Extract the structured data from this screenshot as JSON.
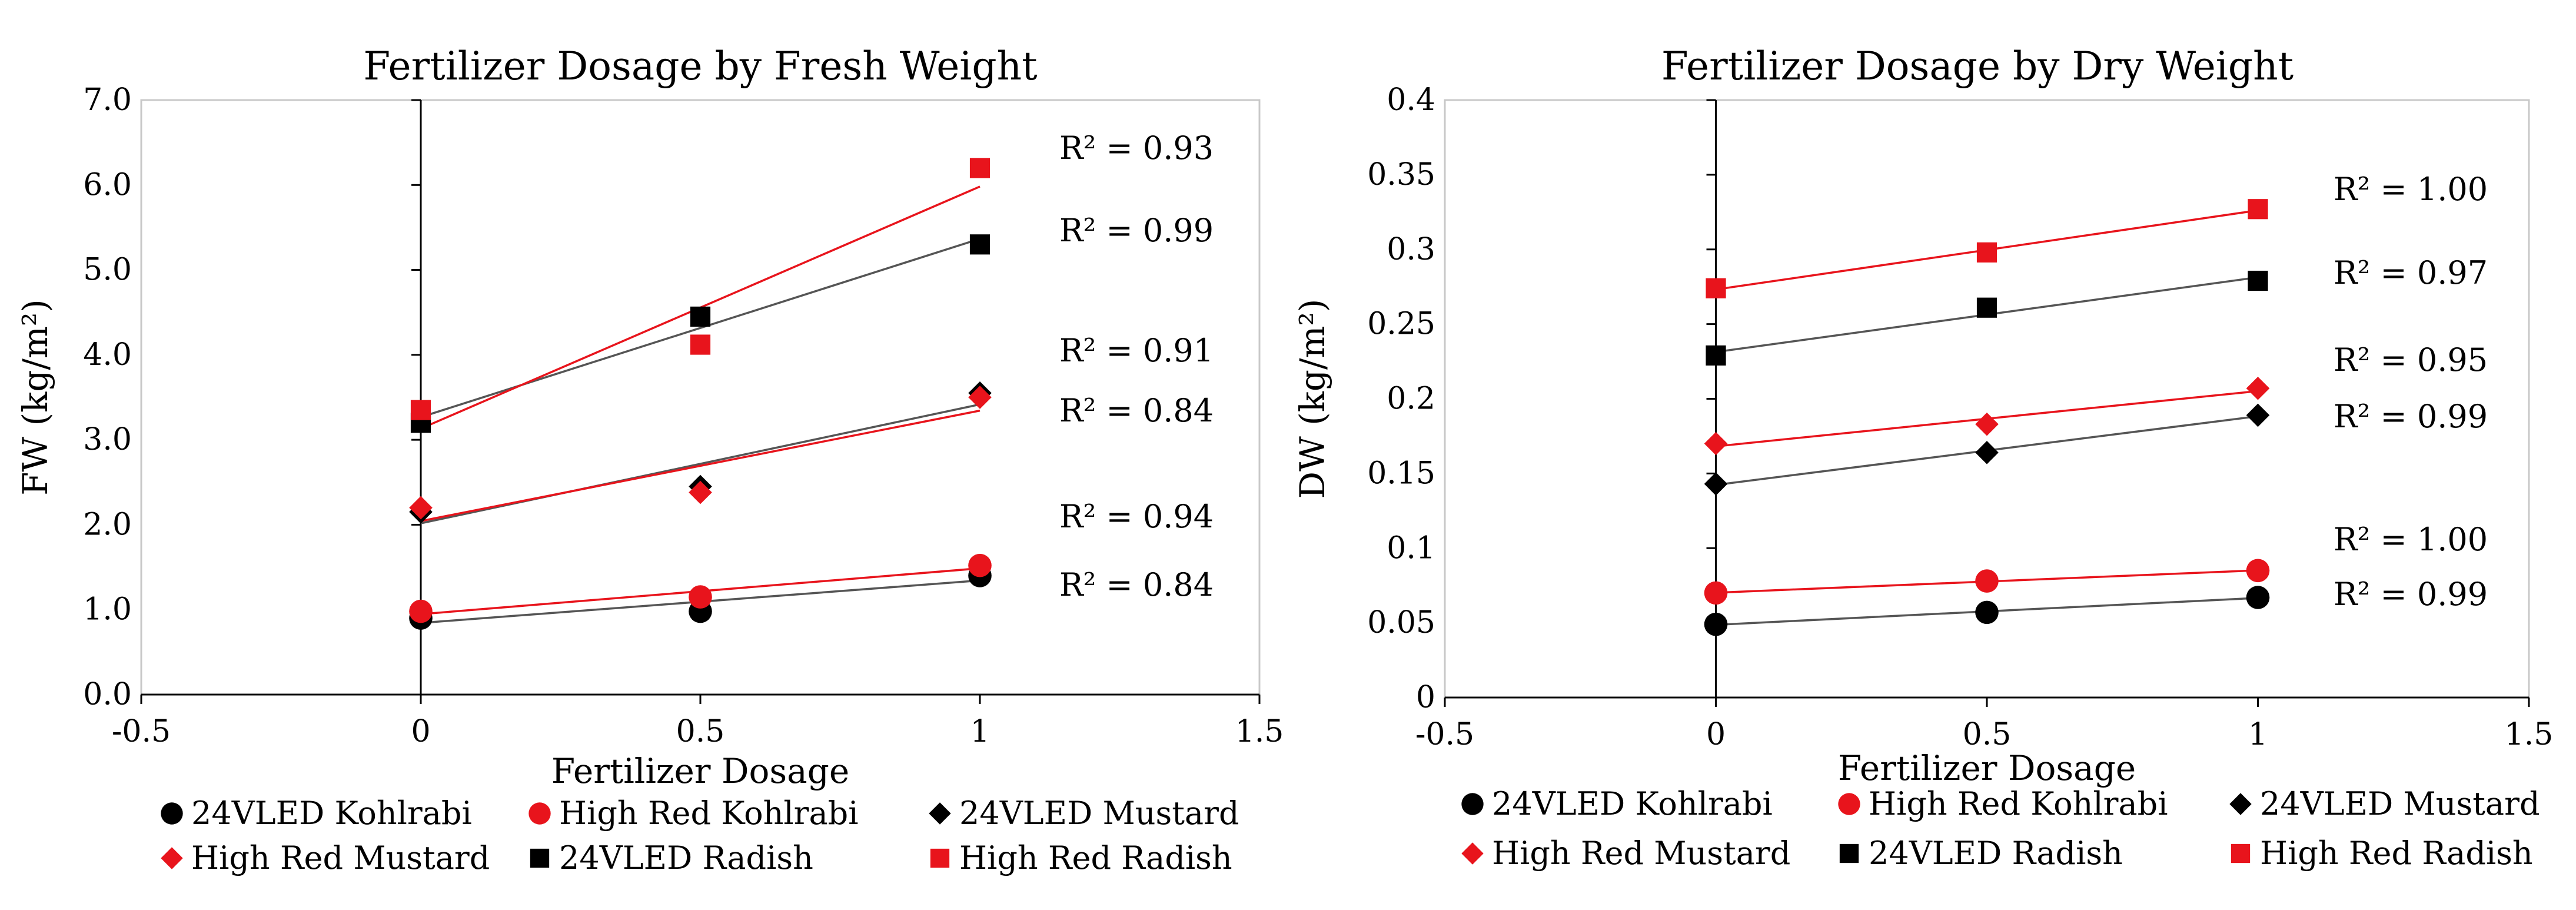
{
  "chart_data": [
    {
      "type": "scatter",
      "title": "Fertilizer Dosage by Fresh Weight",
      "xlabel": "Fertilizer Dosage",
      "ylabel": "FW (kg/m²)",
      "xlim": [
        -0.5,
        1.5
      ],
      "ylim": [
        0,
        7
      ],
      "xticks": [
        "-0.5",
        "0",
        "0.5",
        "1",
        "1.5"
      ],
      "yticks": [
        "0.0",
        "1.0",
        "2.0",
        "3.0",
        "4.0",
        "5.0",
        "6.0",
        "7.0"
      ],
      "grid": false,
      "trendline": "linear",
      "series": [
        {
          "name": "24VLED Kohlrabi",
          "marker": "circle",
          "color": "#000000",
          "x": [
            0,
            0.5,
            1
          ],
          "y": [
            0.9,
            0.98,
            1.4
          ],
          "r2": "R² = 0.84"
        },
        {
          "name": "High Red Kohlrabi",
          "marker": "circle",
          "color": "#e8141c",
          "x": [
            0,
            0.5,
            1
          ],
          "y": [
            0.98,
            1.15,
            1.52
          ],
          "r2": "R² = 0.94"
        },
        {
          "name": "24VLED Mustard",
          "marker": "diamond",
          "color": "#000000",
          "x": [
            0,
            0.5,
            1
          ],
          "y": [
            2.15,
            2.45,
            3.55
          ],
          "r2": "R² = 0.91"
        },
        {
          "name": "High Red Mustard",
          "marker": "diamond",
          "color": "#e8141c",
          "x": [
            0,
            0.5,
            1
          ],
          "y": [
            2.2,
            2.38,
            3.5
          ],
          "r2": "R² = 0.84"
        },
        {
          "name": "24VLED Radish",
          "marker": "square",
          "color": "#000000",
          "x": [
            0,
            0.5,
            1
          ],
          "y": [
            3.2,
            4.45,
            5.3
          ],
          "r2": "R² = 0.99"
        },
        {
          "name": "High Red Radish",
          "marker": "square",
          "color": "#e8141c",
          "x": [
            0,
            0.5,
            1
          ],
          "y": [
            3.35,
            4.12,
            6.2
          ],
          "r2": "R² = 0.93"
        }
      ]
    },
    {
      "type": "scatter",
      "title": "Fertilizer Dosage by Dry Weight",
      "xlabel": "Fertilizer Dosage",
      "ylabel": "DW (kg/m²)",
      "xlim": [
        -0.5,
        1.5
      ],
      "ylim": [
        0,
        0.4
      ],
      "xticks": [
        "-0.5",
        "0",
        "0.5",
        "1",
        "1.5"
      ],
      "yticks": [
        "0",
        "0.05",
        "0.1",
        "0.15",
        "0.2",
        "0.25",
        "0.3",
        "0.35",
        "0.4"
      ],
      "grid": false,
      "trendline": "linear",
      "series": [
        {
          "name": "24VLED Kohlrabi",
          "marker": "circle",
          "color": "#000000",
          "x": [
            0,
            0.5,
            1
          ],
          "y": [
            0.049,
            0.057,
            0.067
          ],
          "r2": "R² = 0.99"
        },
        {
          "name": "High Red Kohlrabi",
          "marker": "circle",
          "color": "#e8141c",
          "x": [
            0,
            0.5,
            1
          ],
          "y": [
            0.07,
            0.078,
            0.085
          ],
          "r2": "R² = 1.00"
        },
        {
          "name": "24VLED Mustard",
          "marker": "diamond",
          "color": "#000000",
          "x": [
            0,
            0.5,
            1
          ],
          "y": [
            0.143,
            0.164,
            0.189
          ],
          "r2": "R² = 0.99"
        },
        {
          "name": "High Red Mustard",
          "marker": "diamond",
          "color": "#e8141c",
          "x": [
            0,
            0.5,
            1
          ],
          "y": [
            0.17,
            0.183,
            0.207
          ],
          "r2": "R² = 0.95"
        },
        {
          "name": "24VLED Radish",
          "marker": "square",
          "color": "#000000",
          "x": [
            0,
            0.5,
            1
          ],
          "y": [
            0.229,
            0.261,
            0.279
          ],
          "r2": "R² = 0.97"
        },
        {
          "name": "High Red Radish",
          "marker": "square",
          "color": "#e8141c",
          "x": [
            0,
            0.5,
            1
          ],
          "y": [
            0.274,
            0.298,
            0.327
          ],
          "r2": "R² = 1.00"
        }
      ]
    }
  ]
}
